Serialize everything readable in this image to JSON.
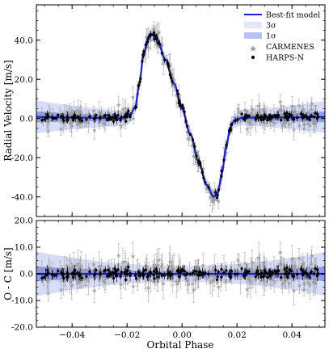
{
  "chart_data": [
    {
      "type": "scatter",
      "panel": "radial-velocity",
      "xlabel": "",
      "ylabel": "Radial Velocity [m/s]",
      "xlim": [
        -0.053,
        0.052
      ],
      "ylim": [
        -50,
        58
      ],
      "yticks": [
        "-40.0",
        "-20.0",
        "0.0",
        "20.0",
        "40.0"
      ],
      "ytick_values": [
        -40,
        -20,
        0,
        20,
        40
      ],
      "legend": {
        "placement": "top-right",
        "entries": [
          "Best-fit model",
          "3σ",
          "1σ",
          "CARMENES",
          "HARPS-N"
        ]
      },
      "model": {
        "name": "Best-fit model",
        "x": [
          -0.053,
          -0.04,
          -0.03,
          -0.022,
          -0.019,
          -0.017,
          -0.0155,
          -0.014,
          -0.012,
          -0.0105,
          -0.009,
          -0.006,
          -0.003,
          0.0,
          0.003,
          0.006,
          0.009,
          0.0115,
          0.013,
          0.0145,
          0.016,
          0.0175,
          0.019,
          0.022,
          0.03,
          0.04,
          0.052
        ],
        "y": [
          0.8,
          0.5,
          0.3,
          0.1,
          1.5,
          6,
          18,
          33,
          42,
          43,
          40,
          30,
          18,
          5,
          -8,
          -22,
          -34,
          -40,
          -38,
          -28,
          -15,
          -5,
          -1,
          0.4,
          0.5,
          0.6,
          0.8
        ]
      },
      "bands": {
        "one_sigma": 1.0,
        "three_sigma": 3.0
      },
      "colors": {
        "model": "#2020d0",
        "band_1sigma": "#7b88e6",
        "band_3sigma": "#c9d0f5",
        "carmenes": "#9a9a9a",
        "harps": "#000000"
      }
    },
    {
      "type": "scatter",
      "panel": "residuals",
      "xlabel": "Orbital Phase",
      "ylabel": "O - C [m/s]",
      "xlim": [
        -0.053,
        0.052
      ],
      "ylim": [
        -20,
        20
      ],
      "yticks": [
        "-20.0",
        "-10.0",
        "0.0",
        "10.0",
        "20.0"
      ],
      "ytick_values": [
        -20,
        -10,
        0,
        10,
        20
      ],
      "xticks": [
        "−0.04",
        "−0.02",
        "0.00",
        "0.02",
        "0.04"
      ],
      "xtick_values": [
        -0.04,
        -0.02,
        0,
        0.02,
        0.04
      ],
      "bands": {
        "one_sigma": 1.0,
        "three_sigma": 3.0
      }
    }
  ]
}
